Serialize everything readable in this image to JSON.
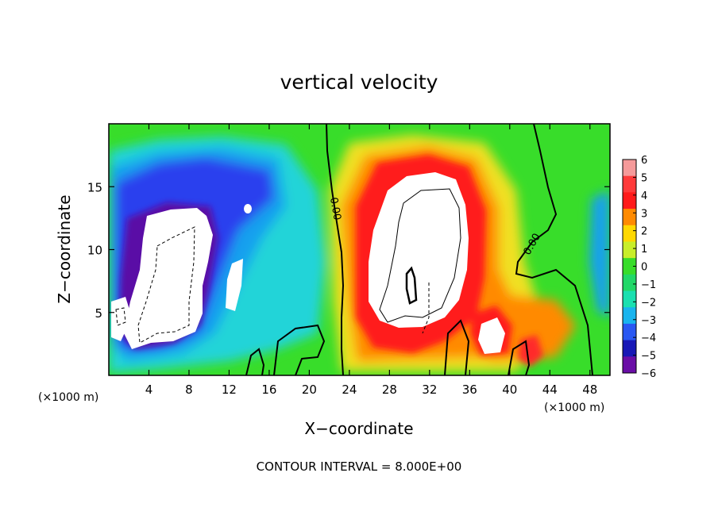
{
  "chart_data": {
    "type": "heatmap",
    "title": "vertical velocity",
    "xlabel": "X−coordinate",
    "ylabel": "Z−coordinate",
    "x_unit_left": "(×1000 m)",
    "x_unit_right": "(×1000 m)",
    "xlim": [
      0,
      50
    ],
    "ylim": [
      0,
      20
    ],
    "xticks": [
      4,
      8,
      12,
      16,
      20,
      24,
      28,
      32,
      36,
      40,
      44,
      48
    ],
    "yticks": [
      5,
      10,
      15
    ],
    "footer": "CONTOUR INTERVAL = 8.000E+00",
    "contour_labels": [
      {
        "text": "0.00",
        "x": 22.3,
        "y": 13.2
      },
      {
        "text": "0.00",
        "x": 42.5,
        "y": 10.3
      }
    ],
    "colorbar": {
      "levels": [
        6,
        5,
        4,
        3,
        2,
        1,
        0,
        -1,
        -2,
        -3,
        -4,
        -5,
        -6
      ],
      "labels": [
        "6",
        "5",
        "4",
        "3",
        "2",
        "1",
        "0",
        "−1",
        "−2",
        "−3",
        "−4",
        "−5",
        "−6"
      ],
      "colors": [
        "#f59a9a",
        "#ff3a3a",
        "#ff1a1a",
        "#ff8a00",
        "#ffd800",
        "#c8ee2a",
        "#38dd2a",
        "#22d868",
        "#1ae0b0",
        "#19b4ee",
        "#2a58f2",
        "#1818b6",
        "#6a0ea6"
      ]
    },
    "colors": {
      "background_field": "#38dd2a",
      "updraft_core": "#ffffff",
      "downdraft_core": "#ffffff"
    }
  }
}
